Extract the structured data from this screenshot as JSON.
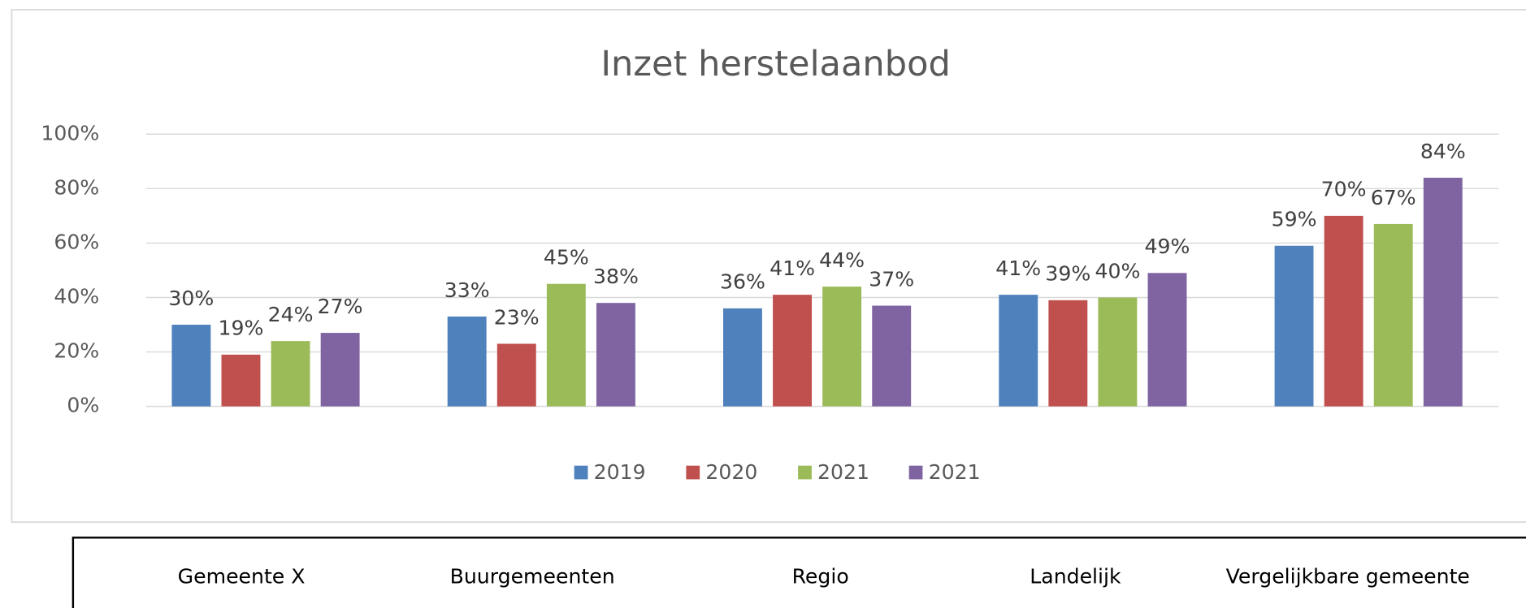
{
  "chart_data": {
    "type": "bar",
    "title": "Inzet herstelaanbod",
    "categories": [
      "Gemeente X",
      "Buurgemeenten",
      "Regio",
      "Landelijk",
      "Vergelijkbare gemeente"
    ],
    "series": [
      {
        "name": "2019",
        "color": "#4f81bd",
        "values": [
          30,
          33,
          36,
          41,
          59
        ],
        "value_labels": [
          "30%",
          "33%",
          "36%",
          "41%",
          "59%"
        ]
      },
      {
        "name": "2020",
        "color": "#c0504d",
        "values": [
          19,
          23,
          41,
          39,
          70
        ],
        "value_labels": [
          "19%",
          "23%",
          "41%",
          "39%",
          "70%"
        ]
      },
      {
        "name": "2021",
        "color": "#9bbb59",
        "values": [
          24,
          45,
          44,
          40,
          67
        ],
        "value_labels": [
          "24%",
          "45%",
          "44%",
          "40%",
          "67%"
        ]
      },
      {
        "name": "2021",
        "color": "#8064a2",
        "values": [
          27,
          38,
          37,
          49,
          84
        ],
        "value_labels": [
          "27%",
          "38%",
          "37%",
          "49%",
          "84%"
        ]
      }
    ],
    "ylim": [
      0,
      100
    ],
    "yticks": [
      {
        "value": 0,
        "label": "0%"
      },
      {
        "value": 20,
        "label": "20%"
      },
      {
        "value": 40,
        "label": "40%"
      },
      {
        "value": 60,
        "label": "60%"
      },
      {
        "value": 80,
        "label": "80%"
      },
      {
        "value": 100,
        "label": "100%"
      }
    ],
    "grid": true,
    "legend": "bottom"
  }
}
